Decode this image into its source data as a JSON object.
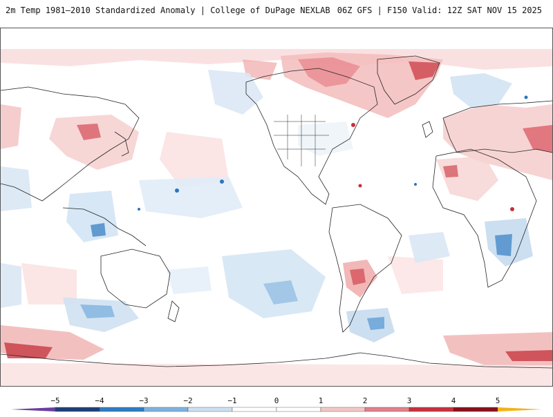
{
  "header": {
    "title_left": "2m Temp 1981–2010 Standardized Anomaly | College of DuPage NEXLAB",
    "title_right": "06Z GFS | F150 Valid: 12Z SAT NOV 15 2025"
  },
  "legend": {
    "ticks": [
      "−5",
      "−4",
      "−3",
      "−2",
      "−1",
      "0",
      "1",
      "2",
      "3",
      "4",
      "5"
    ],
    "colors": [
      "#6a3fa0",
      "#1e3f7a",
      "#2f7ec4",
      "#7cb3e0",
      "#cde0f2",
      "#ffffff",
      "#ffffff",
      "#f4c7c7",
      "#e3808a",
      "#c8323c",
      "#8c0f1c",
      "#f2b21b"
    ],
    "below_color": "#6a3fa0",
    "above_color": "#f2b21b"
  },
  "map": {
    "warm_color": "#f6cfcf",
    "warm_strong": "#e8898f",
    "warm_intense": "#c4303a",
    "cool_color": "#d3e3f3",
    "cool_strong": "#8bbbe3",
    "cool_intense": "#2e74bd",
    "outline_color": "#222222"
  }
}
